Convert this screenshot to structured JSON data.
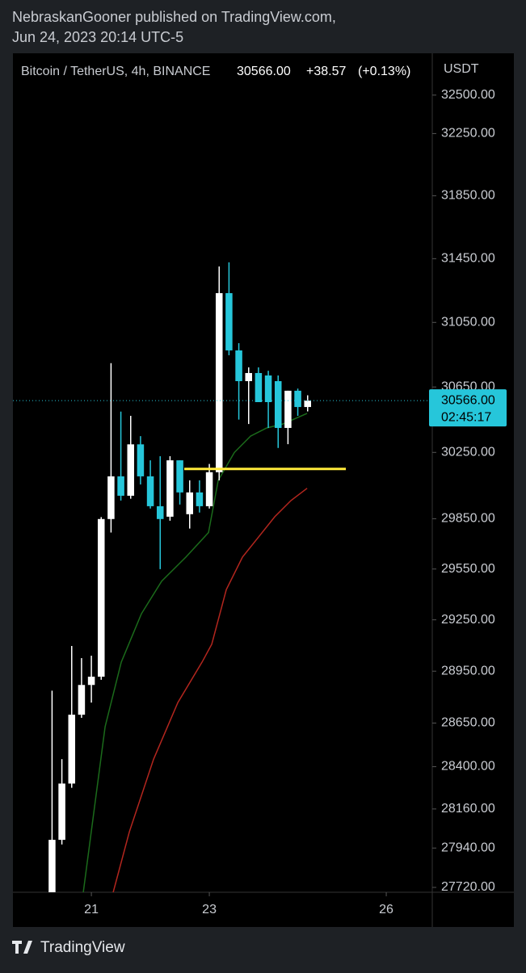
{
  "header": {
    "line1": "NebraskanGooner published on TradingView.com,",
    "line2": "Jun 24, 2023 20:14 UTC-5"
  },
  "chart_data": {
    "type": "candlestick",
    "symbol": "Bitcoin / TetherUS, 4h, BINANCE",
    "price": "30566.00",
    "change": "+38.57",
    "change_pct": "(+0.13%)",
    "currency": "USDT",
    "log_scale": true,
    "up_color": "#ffffff",
    "down_color": "#26c6da",
    "x": [
      20.3333,
      20.5,
      20.6667,
      20.8333,
      21,
      21.1667,
      21.3333,
      21.5,
      21.6667,
      21.8333,
      22,
      22.1667,
      22.3333,
      22.5,
      22.6667,
      22.8333,
      23,
      23.1667,
      23.3333,
      23.5,
      23.6667,
      23.8333,
      24,
      24.1667,
      24.3333,
      24.5,
      24.6667
    ],
    "open": [
      27693,
      27986,
      28304,
      28698,
      28870,
      28918,
      29848,
      30105,
      29988,
      30299,
      30105,
      29925,
      29862,
      30202,
      29877,
      30008,
      29925,
      30130,
      31233,
      30876,
      30686,
      30736,
      30721,
      30686,
      30399,
      30627,
      30527
    ],
    "high": [
      28837,
      28443,
      29097,
      29026,
      29040,
      29860,
      30797,
      30499,
      30473,
      30349,
      30202,
      30227,
      30227,
      30202,
      30081,
      30081,
      30180,
      31401,
      31427,
      30921,
      30771,
      30771,
      30750,
      30721,
      30627,
      30640,
      30599
    ],
    "low": [
      27693,
      27960,
      28280,
      28680,
      28768,
      28900,
      29767,
      29959,
      29970,
      30056,
      29911,
      29549,
      29838,
      29935,
      29791,
      29887,
      29911,
      30081,
      30846,
      30450,
      30423,
      30557,
      30399,
      30277,
      30300,
      30473,
      30500
    ],
    "close": [
      27986,
      28304,
      28698,
      28870,
      28918,
      29848,
      30105,
      29988,
      30299,
      30105,
      29925,
      29848,
      30202,
      30008,
      30008,
      29925,
      30130,
      31233,
      30876,
      30686,
      30736,
      30557,
      30557,
      30399,
      30627,
      30527,
      30566
    ],
    "ma_lines": [
      {
        "color": "#1b6b1b",
        "x": [
          20.863,
          21.233,
          21.507,
          21.849,
          22.192,
          22.603,
          22.986,
          23.151,
          23.425,
          23.699,
          23.973,
          24.247,
          24.658
        ],
        "values": [
          27693,
          28629,
          29003,
          29286,
          29478,
          29621,
          29767,
          30081,
          30250,
          30349,
          30399,
          30423,
          30488
        ]
      },
      {
        "color": "#b3261e",
        "x": [
          21.37,
          21.644,
          22.055,
          22.466,
          22.877,
          23.041,
          23.288,
          23.562,
          23.836,
          24.11,
          24.384,
          24.658
        ],
        "values": [
          27693,
          28031,
          28443,
          28768,
          29003,
          29107,
          29428,
          29621,
          29741,
          29862,
          29959,
          30033
        ]
      }
    ],
    "level_line": {
      "color": "#ffeb3b",
      "value": 30150,
      "x": [
        22.575,
        25.315
      ]
    },
    "last_price": {
      "value": 30566,
      "label": "30566.00",
      "countdown": "02:45:17",
      "color": "#26c6da"
    },
    "xlim": [
      19.67,
      26.78
    ],
    "xticks": [
      21,
      23,
      26
    ],
    "ylim": [
      27693,
      32774
    ],
    "yticks": [
      {
        "value": 32500,
        "label": "32500.00"
      },
      {
        "value": 32250,
        "label": "32250.00"
      },
      {
        "value": 31850,
        "label": "31850.00"
      },
      {
        "value": 31450,
        "label": "31450.00"
      },
      {
        "value": 31050,
        "label": "31050.00"
      },
      {
        "value": 30650,
        "label": "30650.00"
      },
      {
        "value": 30250,
        "label": "30250.00"
      },
      {
        "value": 29850,
        "label": "29850.00"
      },
      {
        "value": 29550,
        "label": "29550.00"
      },
      {
        "value": 29250,
        "label": "29250.00"
      },
      {
        "value": 28950,
        "label": "28950.00"
      },
      {
        "value": 28650,
        "label": "28650.00"
      },
      {
        "value": 28400,
        "label": "28400.00"
      },
      {
        "value": 28160,
        "label": "28160.00"
      },
      {
        "value": 27940,
        "label": "27940.00"
      },
      {
        "value": 27720,
        "label": "27720.00"
      }
    ]
  },
  "footer": {
    "brand": "TradingView"
  }
}
